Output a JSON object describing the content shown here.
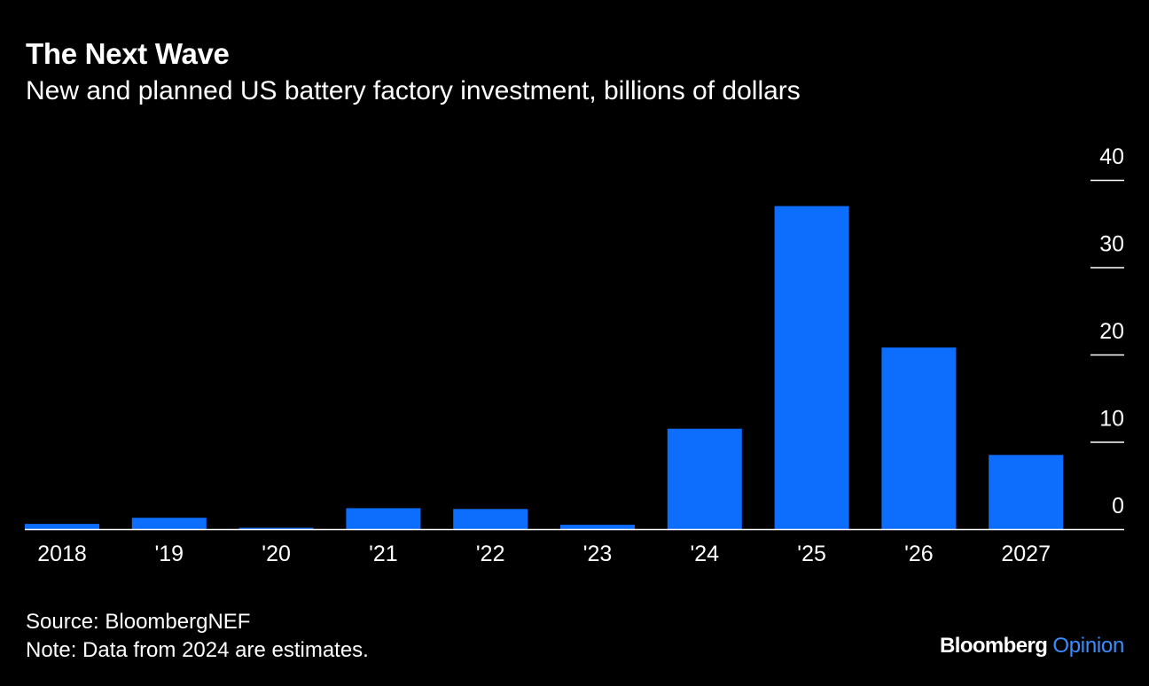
{
  "header": {
    "title": "The Next Wave",
    "subtitle": "New and planned US battery factory investment, billions of dollars"
  },
  "chart_data": {
    "type": "bar",
    "title": "The Next Wave",
    "subtitle": "New and planned US battery factory investment, billions of dollars",
    "categories": [
      "2018",
      "'19",
      "'20",
      "'21",
      "'22",
      "'23",
      "'24",
      "'25",
      "'26",
      "2027"
    ],
    "values": [
      0.6,
      1.3,
      0.1,
      2.4,
      2.3,
      0.5,
      11.5,
      37.0,
      20.8,
      8.5
    ],
    "ylim": [
      0,
      40
    ],
    "yticks": [
      "40",
      "30",
      "20",
      "10",
      "0"
    ],
    "ytick_values": [
      40,
      30,
      20,
      10,
      0
    ],
    "y_axis_position": "right",
    "grid": false,
    "legend": "none",
    "xlabel": "",
    "ylabel": "",
    "colors": {
      "bar": "#0d6efd",
      "background": "#000000",
      "text": "#ffffff",
      "axis": "#ffffff"
    }
  },
  "footer": {
    "source": "Source: BloombergNEF",
    "note": "Note: Data from 2024 are estimates."
  },
  "brand": {
    "name": "Bloomberg",
    "section": "Opinion",
    "section_color": "#3a8dff"
  }
}
